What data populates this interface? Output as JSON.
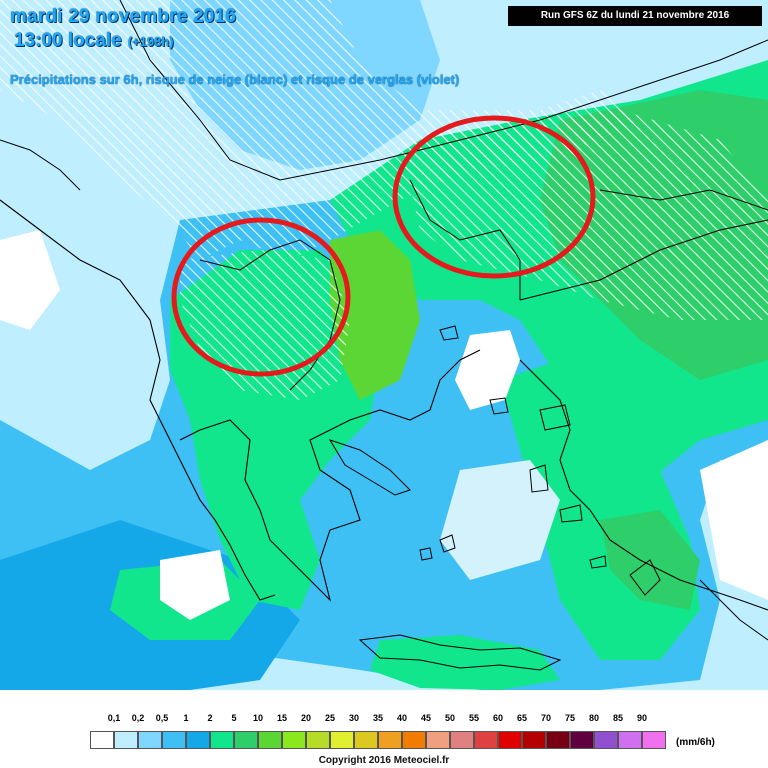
{
  "header": {
    "date_line": "mardi 29 novembre 2016",
    "time_line": "13:00 locale",
    "lead_time": "(+198h)",
    "subtitle": "Précipitations sur 6h, risque de neige (blanc) et risque de verglas (violet)",
    "run_info": "Run GFS 6Z du lundi 21 novembre 2016"
  },
  "legend": {
    "labels": [
      "0,1",
      "0,2",
      "0,5",
      "1",
      "2",
      "5",
      "10",
      "15",
      "20",
      "25",
      "30",
      "35",
      "40",
      "45",
      "50",
      "55",
      "60",
      "65",
      "70",
      "75",
      "80",
      "85",
      "90"
    ],
    "colors": [
      "#ffffff",
      "#bfeefe",
      "#7fd6fe",
      "#3ec0f4",
      "#14a8e8",
      "#12e68c",
      "#2ecf6a",
      "#5cd634",
      "#8ce81e",
      "#b4dc28",
      "#e0f030",
      "#dcc820",
      "#f0a020",
      "#f07c00",
      "#f0a080",
      "#e08080",
      "#e04040",
      "#e00000",
      "#b40000",
      "#780014",
      "#600040",
      "#9050d0",
      "#d070f0",
      "#f070f0"
    ],
    "unit": "(mm/6h)"
  },
  "map": {
    "water_color": "#d4f2fc",
    "land_color": "#ffffff",
    "snow_hatch": "snow-risk-hatching",
    "highlight_color": "#e41a1c"
  },
  "footer": {
    "copyright": "Copyright 2016 Meteociel.fr"
  }
}
